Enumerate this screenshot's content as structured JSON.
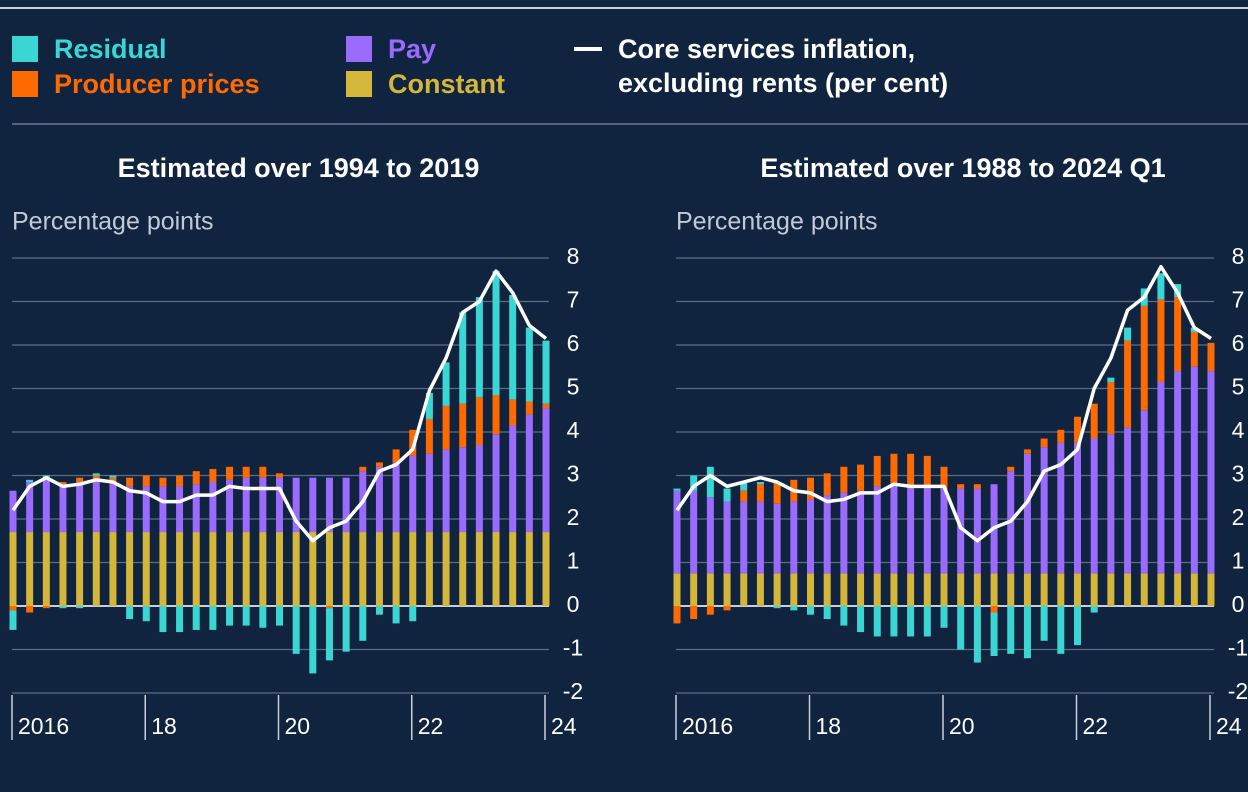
{
  "chart_data": [
    {
      "type": "stacked_bar_line",
      "title": "Estimated over 1994 to 2019",
      "y_label": "Percentage points",
      "categories": [
        "2016",
        null,
        null,
        null,
        null,
        null,
        null,
        null,
        "18",
        null,
        null,
        null,
        null,
        null,
        null,
        null,
        "20",
        null,
        null,
        null,
        null,
        null,
        null,
        null,
        "22",
        null,
        null,
        null,
        null,
        null,
        null,
        null,
        "24"
      ],
      "ylim": [
        -2,
        8
      ],
      "yticks": [
        -2,
        -1,
        0,
        1,
        2,
        3,
        4,
        5,
        6,
        7,
        8
      ],
      "grid": true,
      "series": [
        {
          "name": "Constant",
          "color": "#d4b63a",
          "values": [
            1.7,
            1.7,
            1.7,
            1.7,
            1.7,
            1.7,
            1.7,
            1.7,
            1.7,
            1.7,
            1.7,
            1.7,
            1.7,
            1.7,
            1.7,
            1.7,
            1.7,
            1.7,
            1.7,
            1.7,
            1.7,
            1.7,
            1.7,
            1.7,
            1.7,
            1.7,
            1.7,
            1.7,
            1.7,
            1.7,
            1.7,
            1.7,
            1.7
          ]
        },
        {
          "name": "Pay",
          "color": "#9b6bff",
          "values": [
            0.95,
            1.15,
            1.2,
            1.1,
            1.15,
            1.15,
            1.1,
            1.05,
            1.05,
            1.05,
            1.05,
            1.1,
            1.15,
            1.2,
            1.25,
            1.25,
            1.25,
            1.25,
            1.25,
            1.25,
            1.25,
            1.4,
            1.5,
            1.6,
            1.75,
            1.8,
            1.9,
            1.95,
            2.0,
            2.25,
            2.45,
            2.7,
            2.85
          ]
        },
        {
          "name": "Producer prices",
          "color": "#ff6a00",
          "values": [
            -0.1,
            -0.15,
            -0.05,
            0.05,
            0.1,
            0.15,
            0.15,
            0.2,
            0.25,
            0.2,
            0.25,
            0.3,
            0.3,
            0.3,
            0.25,
            0.25,
            0.1,
            0.0,
            0.0,
            -0.05,
            0.0,
            0.1,
            0.1,
            0.3,
            0.6,
            0.8,
            1.0,
            1.0,
            1.1,
            0.9,
            0.6,
            0.3,
            0.1
          ]
        },
        {
          "name": "Residual",
          "color": "#3ad6d3",
          "values": [
            -0.45,
            0.05,
            0.1,
            -0.05,
            -0.05,
            0.05,
            0.05,
            -0.3,
            -0.35,
            -0.6,
            -0.6,
            -0.55,
            -0.55,
            -0.45,
            -0.45,
            -0.5,
            -0.45,
            -1.1,
            -1.55,
            -1.2,
            -1.05,
            -0.8,
            -0.2,
            -0.4,
            -0.35,
            0.6,
            1.0,
            2.1,
            2.3,
            2.85,
            2.4,
            1.7,
            1.45
          ]
        },
        {
          "name": "Core services inflation, excluding rents (per cent)",
          "color": "#ffffff",
          "kind": "line",
          "values": [
            2.2,
            2.75,
            2.95,
            2.75,
            2.8,
            2.9,
            2.85,
            2.65,
            2.6,
            2.4,
            2.4,
            2.55,
            2.55,
            2.75,
            2.7,
            2.7,
            2.7,
            1.95,
            1.5,
            1.8,
            1.95,
            2.4,
            3.1,
            3.25,
            3.6,
            4.95,
            5.7,
            6.75,
            7.0,
            7.7,
            7.2,
            6.45,
            6.15
          ]
        }
      ]
    },
    {
      "type": "stacked_bar_line",
      "title": "Estimated over 1988 to 2024 Q1",
      "y_label": "Percentage points",
      "categories": [
        "2016",
        null,
        null,
        null,
        null,
        null,
        null,
        null,
        "18",
        null,
        null,
        null,
        null,
        null,
        null,
        null,
        "20",
        null,
        null,
        null,
        null,
        null,
        null,
        null,
        "22",
        null,
        null,
        null,
        null,
        null,
        null,
        null,
        "24"
      ],
      "ylim": [
        -2,
        8
      ],
      "yticks": [
        -2,
        -1,
        0,
        1,
        2,
        3,
        4,
        5,
        6,
        7,
        8
      ],
      "grid": true,
      "series": [
        {
          "color": "#d4b63a",
          "values": [
            0.75,
            0.75,
            0.75,
            0.75,
            0.75,
            0.75,
            0.75,
            0.75,
            0.75,
            0.75,
            0.75,
            0.75,
            0.75,
            0.75,
            0.75,
            0.75,
            0.75,
            0.75,
            0.75,
            0.75,
            0.75,
            0.75,
            0.75,
            0.75,
            0.75,
            0.75,
            0.75,
            0.75,
            0.75,
            0.75,
            0.75,
            0.75,
            0.75
          ]
        },
        {
          "color": "#9b6bff",
          "values": [
            1.9,
            1.9,
            1.75,
            1.65,
            1.65,
            1.65,
            1.6,
            1.65,
            1.7,
            1.8,
            1.85,
            1.9,
            2.0,
            2.05,
            2.0,
            2.0,
            1.95,
            1.95,
            1.95,
            2.05,
            2.35,
            2.75,
            2.9,
            3.0,
            3.0,
            3.1,
            3.2,
            3.35,
            3.75,
            4.4,
            4.65,
            4.75,
            4.65
          ]
        },
        {
          "color": "#ff6a00",
          "values": [
            -0.4,
            -0.3,
            -0.2,
            -0.1,
            0.25,
            0.4,
            0.5,
            0.5,
            0.5,
            0.5,
            0.6,
            0.6,
            0.7,
            0.7,
            0.75,
            0.7,
            0.5,
            0.1,
            0.1,
            -0.15,
            0.1,
            0.1,
            0.2,
            0.3,
            0.6,
            0.8,
            1.2,
            2.0,
            2.4,
            1.9,
            1.7,
            0.8,
            0.65
          ]
        },
        {
          "color": "#3ad6d3",
          "values": [
            0.05,
            0.35,
            0.7,
            0.3,
            0.2,
            0.05,
            -0.05,
            -0.1,
            -0.2,
            -0.3,
            -0.45,
            -0.6,
            -0.7,
            -0.7,
            -0.7,
            -0.7,
            -0.5,
            -1.0,
            -1.3,
            -1.0,
            -1.1,
            -1.2,
            -0.8,
            -1.1,
            -0.9,
            -0.15,
            0.1,
            0.3,
            0.4,
            0.6,
            0.3,
            0.1,
            0.0
          ]
        },
        {
          "color": "#ffffff",
          "kind": "line",
          "values": [
            2.2,
            2.75,
            3.0,
            2.75,
            2.85,
            2.95,
            2.85,
            2.65,
            2.6,
            2.4,
            2.45,
            2.6,
            2.6,
            2.8,
            2.75,
            2.75,
            2.75,
            1.8,
            1.5,
            1.8,
            1.95,
            2.4,
            3.1,
            3.25,
            3.6,
            5.0,
            5.7,
            6.8,
            7.1,
            7.8,
            7.2,
            6.4,
            6.15
          ]
        }
      ]
    }
  ]
}
